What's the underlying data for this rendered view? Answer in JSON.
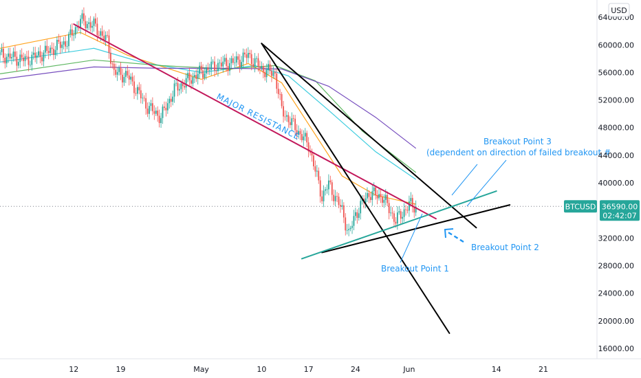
{
  "chart_data": {
    "type": "candlestick",
    "symbol": "BTCUSD",
    "currency": "USD",
    "price_label": "36590.00",
    "countdown": "02:42:07",
    "last_price": 36590,
    "y_ticks": [
      "64000.00",
      "60000.00",
      "56000.00",
      "52000.00",
      "48000.00",
      "44000.00",
      "40000.00",
      "32000.00",
      "28000.00",
      "24000.00",
      "20000.00",
      "16000.00"
    ],
    "y_tick_values": [
      64000,
      60000,
      56000,
      52000,
      48000,
      44000,
      40000,
      32000,
      28000,
      24000,
      20000,
      16000
    ],
    "x_ticks": [
      "12",
      "19",
      "May",
      "10",
      "17",
      "24",
      "Jun",
      "14",
      "21"
    ],
    "x_tick_dates": [
      "2021-04-12",
      "2021-04-19",
      "2021-05-01",
      "2021-05-10",
      "2021-05-17",
      "2021-05-24",
      "2021-06-01",
      "2021-06-14",
      "2021-06-21"
    ],
    "ylim": [
      14500,
      66500
    ],
    "xlim": [
      "2021-04-01",
      "2021-06-29"
    ],
    "series": [
      {
        "kind": "price",
        "color": "#26a69a",
        "x": [
          "2021-04-01",
          "2021-04-05",
          "2021-04-08",
          "2021-04-11",
          "2021-04-13",
          "2021-04-15",
          "2021-04-17",
          "2021-04-18",
          "2021-04-20",
          "2021-04-23",
          "2021-04-25",
          "2021-04-27",
          "2021-04-30",
          "2021-05-03",
          "2021-05-06",
          "2021-05-08",
          "2021-05-10",
          "2021-05-12",
          "2021-05-13",
          "2021-05-15",
          "2021-05-17",
          "2021-05-19",
          "2021-05-20",
          "2021-05-22",
          "2021-05-23",
          "2021-05-24",
          "2021-05-26",
          "2021-05-28",
          "2021-05-30",
          "2021-06-01",
          "2021-06-02"
        ],
        "y": [
          58500,
          57800,
          59000,
          60500,
          63500,
          62800,
          60500,
          56000,
          55500,
          51000,
          49500,
          53500,
          55500,
          57000,
          57500,
          58500,
          56500,
          55800,
          50500,
          48000,
          45500,
          38000,
          39800,
          36000,
          32500,
          35500,
          38500,
          38000,
          34500,
          36800,
          36590
        ]
      },
      {
        "kind": "ema",
        "color": "#ff9800",
        "x": [
          "2021-04-01",
          "2021-04-13",
          "2021-04-20",
          "2021-05-01",
          "2021-05-08",
          "2021-05-13",
          "2021-05-17",
          "2021-05-22",
          "2021-05-27",
          "2021-06-02"
        ],
        "y": [
          59500,
          61800,
          58500,
          55000,
          57300,
          54500,
          48500,
          41000,
          38200,
          36900
        ]
      },
      {
        "kind": "sma",
        "color": "#26c6da",
        "x": [
          "2021-04-01",
          "2021-04-15",
          "2021-04-22",
          "2021-05-01",
          "2021-05-09",
          "2021-05-14",
          "2021-05-20",
          "2021-05-27",
          "2021-06-02"
        ],
        "y": [
          57500,
          59500,
          57500,
          56000,
          57000,
          55500,
          50500,
          44500,
          40500
        ]
      },
      {
        "kind": "sma",
        "color": "#4caf50",
        "x": [
          "2021-04-01",
          "2021-04-15",
          "2021-04-25",
          "2021-05-05",
          "2021-05-12",
          "2021-05-18",
          "2021-05-25",
          "2021-06-02"
        ],
        "y": [
          55800,
          57800,
          57000,
          56500,
          57000,
          54800,
          47500,
          41500
        ]
      },
      {
        "kind": "sma",
        "color": "#673ab7",
        "x": [
          "2021-04-01",
          "2021-04-15",
          "2021-04-25",
          "2021-05-05",
          "2021-05-13",
          "2021-05-20",
          "2021-05-27",
          "2021-06-02"
        ],
        "y": [
          55000,
          56800,
          56600,
          56600,
          56500,
          54000,
          49500,
          45000
        ]
      }
    ],
    "trendlines": [
      {
        "name": "major-resistance",
        "color": "#c2185b",
        "x": [
          "2021-04-12",
          "2021-06-05"
        ],
        "y": [
          63000,
          34800
        ]
      },
      {
        "name": "descending-steep",
        "color": "#000000",
        "x": [
          "2021-05-10",
          "2021-06-07"
        ],
        "y": [
          60200,
          18200
        ]
      },
      {
        "name": "descending-upper",
        "color": "#000000",
        "x": [
          "2021-05-10",
          "2021-06-11"
        ],
        "y": [
          60200,
          33500
        ]
      },
      {
        "name": "support-lower",
        "color": "#000000",
        "x": [
          "2021-05-19",
          "2021-06-16"
        ],
        "y": [
          29900,
          36800
        ]
      },
      {
        "name": "ascending-support",
        "color": "#26a69a",
        "x": [
          "2021-05-16",
          "2021-06-14"
        ],
        "y": [
          29000,
          38800
        ]
      }
    ],
    "annotations": [
      {
        "text": "MAJOR RESISTANCE",
        "color": "#2196f3"
      },
      {
        "text": "Breakout Point 1",
        "color": "#2196f3"
      },
      {
        "text": "Breakout Point 2",
        "color": "#2196f3"
      },
      {
        "text": "Breakout Point 3",
        "color": "#2196f3"
      },
      {
        "text": "(dependent on direction of failed breakout #",
        "color": "#2196f3"
      }
    ],
    "grid": false,
    "legend": "none"
  }
}
